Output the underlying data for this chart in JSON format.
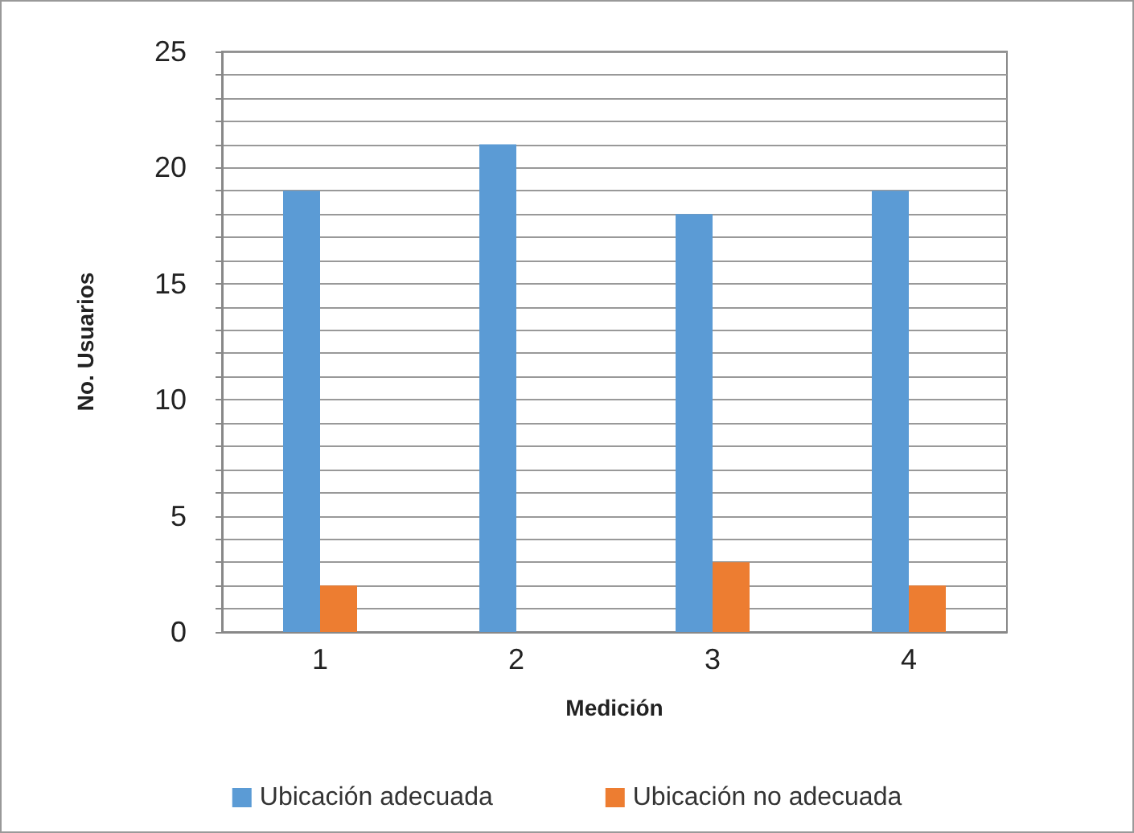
{
  "chart_data": {
    "type": "bar",
    "xlabel": "Medición",
    "ylabel": "No. Usuarios",
    "categories": [
      "1",
      "2",
      "3",
      "4"
    ],
    "series": [
      {
        "name": "Ubicación adecuada",
        "color": "#5b9bd5",
        "values": [
          19,
          21,
          18,
          19
        ]
      },
      {
        "name": "Ubicación no adecuada",
        "color": "#ed7d31",
        "values": [
          2,
          0,
          3,
          2
        ]
      }
    ],
    "ylim": [
      0,
      25
    ],
    "yticks": [
      0,
      {
        "value": 1,
        "label": null
      },
      {
        "value": 2,
        "label": null
      },
      {
        "value": 3,
        "label": null
      },
      {
        "value": 4,
        "label": null
      },
      5,
      {
        "value": 6,
        "label": null
      },
      {
        "value": 7,
        "label": null
      },
      {
        "value": 8,
        "label": null
      },
      {
        "value": 9,
        "label": null
      },
      10,
      {
        "value": 11,
        "label": null
      },
      {
        "value": 12,
        "label": null
      },
      {
        "value": 13,
        "label": null
      },
      {
        "value": 14,
        "label": null
      },
      15,
      {
        "value": 16,
        "label": null
      },
      {
        "value": 17,
        "label": null
      },
      {
        "value": 18,
        "label": null
      },
      {
        "value": 19,
        "label": null
      },
      20,
      {
        "value": 21,
        "label": null
      },
      {
        "value": 22,
        "label": null
      },
      {
        "value": 23,
        "label": null
      },
      {
        "value": 24,
        "label": null
      },
      25
    ],
    "grid": "y",
    "legend": "bottom"
  }
}
